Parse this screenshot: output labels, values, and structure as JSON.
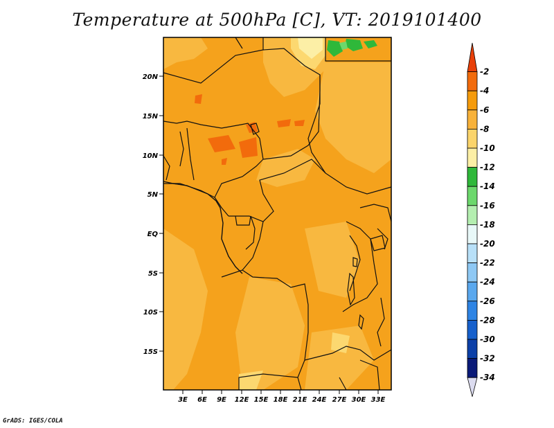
{
  "title": "Temperature at 500hPa [C], VT: 2019101400",
  "footer": "GrADS: IGES/COLA",
  "map": {
    "lat_labels": [
      "20N",
      "15N",
      "10N",
      "5N",
      "EQ",
      "5S",
      "10S",
      "15S"
    ],
    "lat_values": [
      20,
      15,
      10,
      5,
      0,
      -5,
      -10,
      -15
    ],
    "lon_labels": [
      "3E",
      "6E",
      "9E",
      "12E",
      "15E",
      "18E",
      "21E",
      "24E",
      "27E",
      "30E",
      "33E"
    ],
    "lon_values": [
      3,
      6,
      9,
      12,
      15,
      18,
      21,
      24,
      27,
      30,
      33
    ],
    "extent": {
      "lon_min": 0,
      "lon_max": 35,
      "lat_min": -20,
      "lat_max": 25
    }
  },
  "colorbar": {
    "labels": [
      "-2",
      "-4",
      "-6",
      "-8",
      "-10",
      "-12",
      "-14",
      "-16",
      "-18",
      "-20",
      "-22",
      "-24",
      "-26",
      "-28",
      "-30",
      "-32",
      "-34"
    ],
    "colors": [
      "#e8400a",
      "#f26b0c",
      "#f59b0c",
      "#f8b23a",
      "#fbd46b",
      "#fcefa6",
      "#2fb83a",
      "#6cd86c",
      "#b4eeb0",
      "#e8f8f8",
      "#b8e0f8",
      "#8ec8f4",
      "#5aa8ee",
      "#2e84e4",
      "#1660cc",
      "#0c40a8",
      "#0a1a78",
      "#dcdcf0"
    ]
  }
}
